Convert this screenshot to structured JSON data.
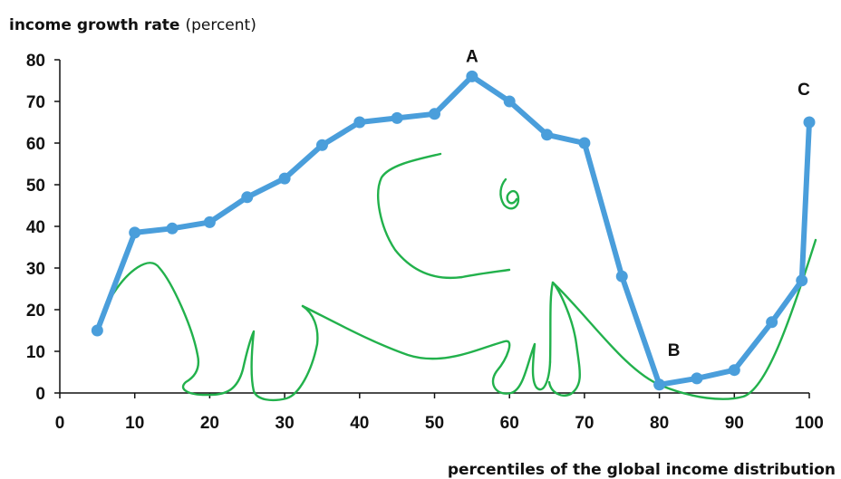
{
  "chart_data": {
    "type": "line",
    "ylabel_bold": "income growth rate",
    "ylabel_unit": "(percent)",
    "xlabel": "percentiles of the global income distribution",
    "xlim": [
      0,
      100
    ],
    "ylim": [
      0,
      80
    ],
    "x_ticks": [
      0,
      10,
      20,
      30,
      40,
      50,
      60,
      70,
      80,
      90,
      100
    ],
    "y_ticks": [
      0,
      10,
      20,
      30,
      40,
      50,
      60,
      70,
      80
    ],
    "grid": false,
    "series": [
      {
        "color": "#4a9edb",
        "points": [
          {
            "x": 5,
            "y": 15
          },
          {
            "x": 10,
            "y": 38.5
          },
          {
            "x": 15,
            "y": 39.5
          },
          {
            "x": 20,
            "y": 41
          },
          {
            "x": 25,
            "y": 47
          },
          {
            "x": 30,
            "y": 51.5
          },
          {
            "x": 35,
            "y": 59.5
          },
          {
            "x": 40,
            "y": 65
          },
          {
            "x": 45,
            "y": 66
          },
          {
            "x": 50,
            "y": 67
          },
          {
            "x": 55,
            "y": 76
          },
          {
            "x": 60,
            "y": 70
          },
          {
            "x": 65,
            "y": 62
          },
          {
            "x": 70,
            "y": 60
          },
          {
            "x": 75,
            "y": 28
          },
          {
            "x": 80,
            "y": 2
          },
          {
            "x": 85,
            "y": 3.5
          },
          {
            "x": 90,
            "y": 5.5
          },
          {
            "x": 95,
            "y": 17
          },
          {
            "x": 99,
            "y": 27
          },
          {
            "x": 100,
            "y": 65
          }
        ]
      }
    ],
    "annotations": [
      {
        "text": "A",
        "x": 55,
        "y": 76
      },
      {
        "text": "B",
        "x": 80,
        "y": 2
      },
      {
        "text": "C",
        "x": 100,
        "y": 65
      }
    ],
    "overlay": {
      "description": "hand-drawn elephant doodle",
      "color": "#22b14c"
    }
  }
}
